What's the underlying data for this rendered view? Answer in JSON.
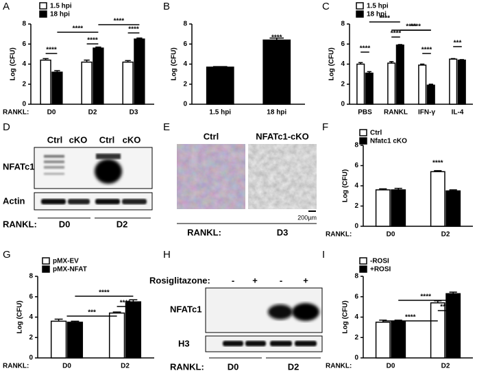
{
  "chart_data": [
    {
      "type": "bar",
      "panel": "A",
      "ylabel": "Log (CFU)",
      "xlabel": "RANKL:",
      "categories": [
        "D0",
        "D2",
        "D3"
      ],
      "series": [
        {
          "name": "1.5 hpi",
          "color": "#ffffff",
          "values": [
            4.4,
            4.2,
            4.2
          ],
          "errors": [
            0.15,
            0.2,
            0.15
          ]
        },
        {
          "name": "18 hpi",
          "color": "#000000",
          "values": [
            3.2,
            5.6,
            6.5
          ],
          "errors": [
            0.15,
            0.1,
            0.1
          ]
        }
      ],
      "ylim": [
        0,
        8
      ],
      "yticks": [
        0,
        2,
        4,
        6,
        8
      ],
      "annotations": [
        "****",
        "****",
        "****",
        "****",
        "****"
      ]
    },
    {
      "type": "bar",
      "panel": "B",
      "ylabel": "Log (CFU)",
      "categories": [
        "1.5 hpi",
        "18 hpi"
      ],
      "values": [
        3.7,
        6.4
      ],
      "errors": [
        0.05,
        0.2
      ],
      "color": "#000000",
      "ylim": [
        0,
        8
      ],
      "yticks": [
        0,
        2,
        4,
        6,
        8
      ],
      "annotations": [
        "****"
      ]
    },
    {
      "type": "bar",
      "panel": "C",
      "ylabel": "Log (CFU)",
      "categories": [
        "PBS",
        "RANKL",
        "IFN-γ",
        "IL-4"
      ],
      "series": [
        {
          "name": "1.5 hpi",
          "color": "#ffffff",
          "values": [
            4.0,
            4.1,
            3.9,
            4.5
          ],
          "errors": [
            0.15,
            0.15,
            0.1,
            0.05
          ]
        },
        {
          "name": "18 hpi",
          "color": "#000000",
          "values": [
            3.1,
            5.9,
            1.9,
            4.4
          ],
          "errors": [
            0.15,
            0.05,
            0.1,
            0.05
          ]
        }
      ],
      "ylim": [
        0,
        8
      ],
      "yticks": [
        0,
        2,
        4,
        6,
        8
      ],
      "annotations": [
        "****",
        "****",
        "****",
        "****",
        "****",
        "****",
        "***"
      ]
    },
    {
      "type": "bar",
      "panel": "F",
      "ylabel": "Log (CFU)",
      "xlabel": "RANKL:",
      "categories": [
        "D0",
        "D2"
      ],
      "series": [
        {
          "name": "Ctrl",
          "color": "#ffffff",
          "values": [
            3.6,
            5.4
          ],
          "errors": [
            0.1,
            0.1
          ]
        },
        {
          "name": "Nfatc1 cKO",
          "color": "#000000",
          "values": [
            3.6,
            3.5
          ],
          "errors": [
            0.15,
            0.1
          ]
        }
      ],
      "ylim": [
        0,
        8
      ],
      "yticks": [
        0,
        2,
        4,
        6,
        8
      ],
      "annotations": [
        "****"
      ]
    },
    {
      "type": "bar",
      "panel": "G",
      "ylabel": "Log (CFU)",
      "xlabel": "RANKL:",
      "categories": [
        "D0",
        "D2"
      ],
      "series": [
        {
          "name": "pMX-EV",
          "color": "#ffffff",
          "values": [
            3.6,
            4.4
          ],
          "errors": [
            0.2,
            0.1
          ]
        },
        {
          "name": "pMX-NFAT",
          "color": "#000000",
          "values": [
            3.5,
            5.5
          ],
          "errors": [
            0.1,
            0.2
          ]
        }
      ],
      "ylim": [
        0,
        8
      ],
      "yticks": [
        0,
        2,
        4,
        6,
        8
      ],
      "annotations": [
        "****",
        "****",
        "***"
      ]
    },
    {
      "type": "bar",
      "panel": "I",
      "ylabel": "Log (CFU)",
      "xlabel": "RANKL:",
      "categories": [
        "D0",
        "D2"
      ],
      "series": [
        {
          "name": "-ROSI",
          "color": "#ffffff",
          "values": [
            3.5,
            5.4
          ],
          "errors": [
            0.2,
            0.2
          ]
        },
        {
          "name": "+ROSI",
          "color": "#000000",
          "values": [
            3.6,
            6.3
          ],
          "errors": [
            0.1,
            0.15
          ]
        }
      ],
      "ylim": [
        0,
        8
      ],
      "yticks": [
        0,
        2,
        4,
        6,
        8
      ],
      "annotations": [
        "****",
        "****",
        "****"
      ]
    }
  ],
  "blot_d": {
    "panel": "D",
    "lanes": [
      "Ctrl",
      "cKO",
      "Ctrl",
      "cKO"
    ],
    "rows": [
      "NFATc1",
      "Actin"
    ],
    "condition": "RANKL:",
    "groups": [
      "D0",
      "D2"
    ]
  },
  "image_e": {
    "panel": "E",
    "images": [
      "Ctrl",
      "NFATc1-cKO"
    ],
    "scale": "200µm",
    "condition": "RANKL:",
    "group": "D3"
  },
  "blot_h": {
    "panel": "H",
    "treatment": "Rosiglitazone:",
    "lanes": [
      "-",
      "+",
      "-",
      "+"
    ],
    "rows": [
      "NFATc1",
      "H3"
    ],
    "condition": "RANKL:",
    "groups": [
      "D0",
      "D2"
    ]
  }
}
